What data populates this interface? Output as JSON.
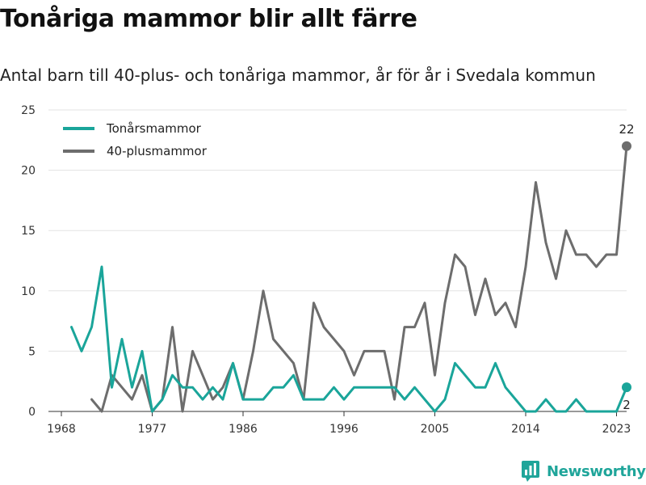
{
  "title": "Tonåriga mammor blir allt färre",
  "subtitle": "Antal barn till 40-plus- och tonåriga mammor, år för år i Svedala kommun",
  "brand": "Newsworthy",
  "colors": {
    "teen": "#1aa59a",
    "forty": "#6d6d6d",
    "grid": "#e3e3e3",
    "axis": "#333333"
  },
  "chart_data": {
    "type": "line",
    "title": "Tonåriga mammor blir allt färre",
    "subtitle": "Antal barn till 40-plus- och tonåriga mammor, år för år i Svedala kommun",
    "xlabel": "",
    "ylabel": "",
    "xlim": [
      1968,
      2024
    ],
    "ylim": [
      0,
      25
    ],
    "x_ticks": [
      1968,
      1977,
      1986,
      1996,
      2005,
      2014,
      2023
    ],
    "y_ticks": [
      0,
      5,
      10,
      15,
      20,
      25
    ],
    "grid": true,
    "legend_position": "top-left",
    "series": [
      {
        "name": "Tonårsmammor",
        "color": "#1aa59a",
        "x": [
          1969,
          1970,
          1971,
          1972,
          1973,
          1974,
          1975,
          1976,
          1977,
          1978,
          1979,
          1980,
          1981,
          1982,
          1983,
          1984,
          1985,
          1986,
          1987,
          1988,
          1989,
          1990,
          1991,
          1992,
          1993,
          1994,
          1995,
          1996,
          1997,
          1998,
          1999,
          2000,
          2001,
          2002,
          2003,
          2004,
          2005,
          2006,
          2007,
          2008,
          2009,
          2010,
          2011,
          2012,
          2013,
          2014,
          2015,
          2016,
          2017,
          2018,
          2019,
          2020,
          2021,
          2022,
          2023,
          2024
        ],
        "values": [
          7,
          5,
          7,
          12,
          2,
          6,
          2,
          5,
          0,
          1,
          3,
          2,
          2,
          1,
          2,
          1,
          4,
          1,
          1,
          1,
          2,
          2,
          3,
          1,
          1,
          1,
          2,
          1,
          2,
          2,
          2,
          2,
          2,
          1,
          2,
          1,
          0,
          1,
          4,
          3,
          2,
          2,
          4,
          2,
          1,
          0,
          0,
          1,
          0,
          0,
          1,
          0,
          0,
          0,
          0,
          2
        ],
        "end_label": "2"
      },
      {
        "name": "40-plusmammor",
        "color": "#6d6d6d",
        "x": [
          1971,
          1972,
          1973,
          1974,
          1975,
          1976,
          1977,
          1978,
          1979,
          1980,
          1981,
          1982,
          1983,
          1984,
          1985,
          1986,
          1987,
          1988,
          1989,
          1990,
          1991,
          1992,
          1993,
          1994,
          1995,
          1996,
          1997,
          1998,
          1999,
          2000,
          2001,
          2002,
          2003,
          2004,
          2005,
          2006,
          2007,
          2008,
          2009,
          2010,
          2011,
          2012,
          2013,
          2014,
          2015,
          2016,
          2017,
          2018,
          2019,
          2020,
          2021,
          2022,
          2023,
          2024
        ],
        "values": [
          1,
          0,
          3,
          2,
          1,
          3,
          0,
          1,
          7,
          0,
          5,
          3,
          1,
          2,
          4,
          1,
          5,
          10,
          6,
          5,
          4,
          1,
          9,
          7,
          6,
          5,
          3,
          5,
          5,
          5,
          1,
          7,
          7,
          9,
          3,
          9,
          13,
          12,
          8,
          11,
          8,
          9,
          7,
          12,
          19,
          14,
          11,
          15,
          13,
          13,
          12,
          13,
          13,
          22
        ],
        "end_label": "22"
      }
    ]
  }
}
